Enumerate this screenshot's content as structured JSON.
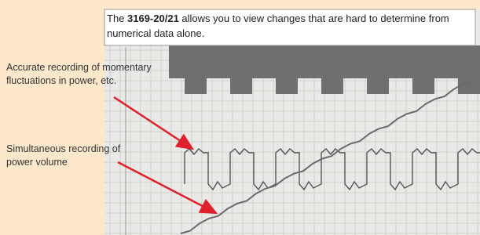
{
  "caption": {
    "prefix": "The ",
    "model": "3169-20/21",
    "text": " allows you to view changes that are hard to determine from numerical data alone."
  },
  "annotations": [
    {
      "text": "Accurate recording of momentary fluctuations in power, etc."
    },
    {
      "text": "Simultaneous recording of power volume"
    }
  ]
}
